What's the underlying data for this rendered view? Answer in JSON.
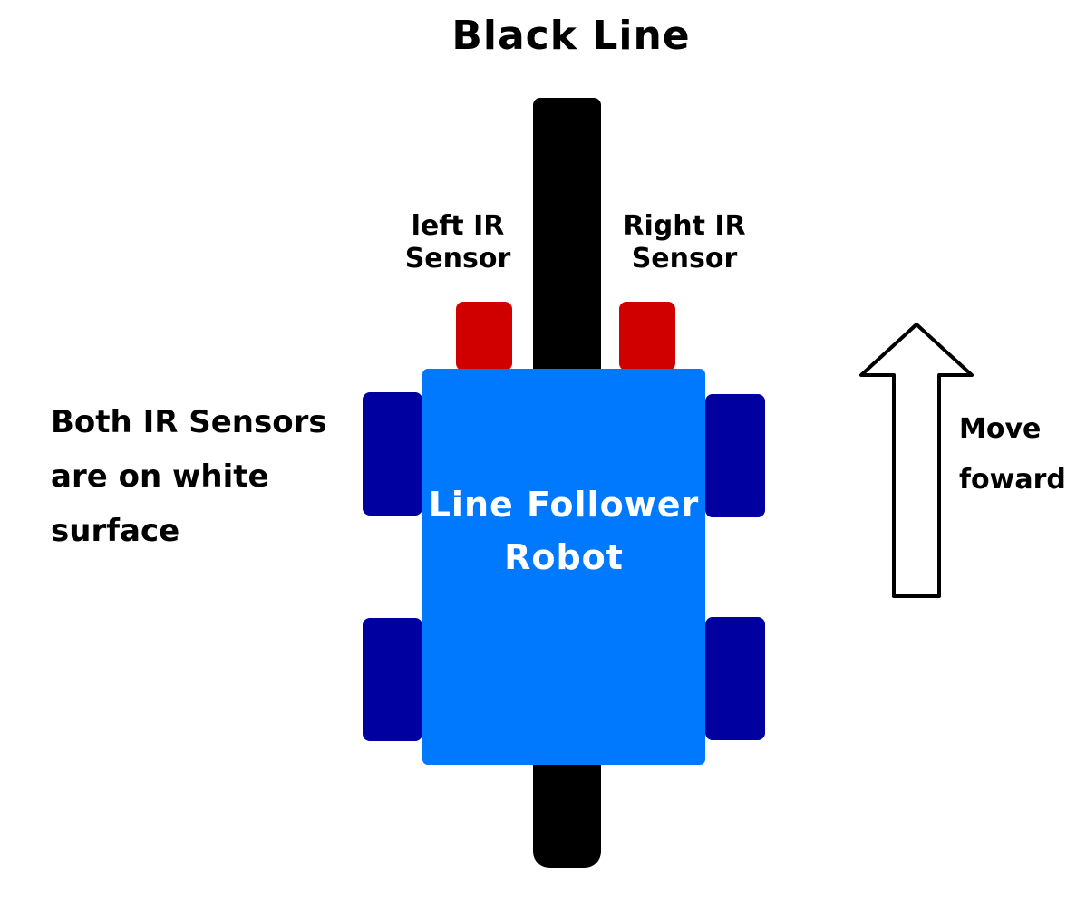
{
  "title": "Black Line",
  "sensors": {
    "left_label": "left IR\nSensor",
    "right_label": "Right IR\nSensor"
  },
  "robot": {
    "label": "Line Follower\nRobot"
  },
  "status_text": "Both IR Sensors\nare on white\nsurface",
  "action_text": "Move\nfoward",
  "colors": {
    "line": "#000000",
    "sensor": "#d00000",
    "chassis": "#0079ff",
    "wheel": "#0000a0",
    "label_text": "#ffffff"
  },
  "icons": {
    "direction": "up-arrow-icon"
  }
}
